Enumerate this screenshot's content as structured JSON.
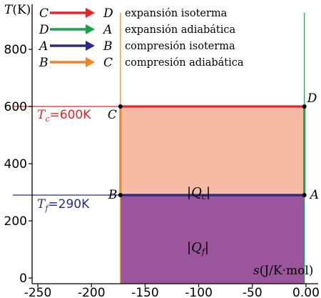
{
  "chart_data": {
    "type": "area",
    "xlim": [
      -262,
      10
    ],
    "ylim": [
      -20,
      960
    ],
    "x_ticks": [
      -250,
      -200,
      -150,
      -100,
      -50,
      0
    ],
    "x_tick_labels": [
      "-250",
      "-200",
      "-150",
      "-100",
      "-50",
      "0.00"
    ],
    "y_ticks": [
      0,
      200,
      400,
      600,
      800
    ],
    "y_tick_labels": [
      "0",
      "200",
      "400",
      "600",
      "800"
    ],
    "ylabel_var": "T",
    "ylabel_unit": "(K)",
    "xlabel_var": "s",
    "xlabel_unit": "(J/K·mol)",
    "points": [
      {
        "label": "A",
        "x": -1.5,
        "y": 290
      },
      {
        "label": "B",
        "x": -173,
        "y": 290
      },
      {
        "label": "C",
        "x": -173,
        "y": 600
      },
      {
        "label": "D",
        "x": -1.5,
        "y": 600
      }
    ],
    "segments": [
      {
        "from": "C",
        "to": "D",
        "name": "expansión isoterma",
        "color": "#e8262a"
      },
      {
        "from": "D",
        "to": "A",
        "name": "expansión adiabática",
        "color": "#1ba14a"
      },
      {
        "from": "A",
        "to": "B",
        "name": "compresión isoterma",
        "color": "#2b2a86"
      },
      {
        "from": "B",
        "to": "C",
        "name": "compresión adiabática",
        "color": "#f08426"
      }
    ],
    "hot_isotherm": {
      "var": "T",
      "sub": "c",
      "value_text": "=600K",
      "value": 600,
      "color": "#e8262a"
    },
    "cold_isotherm": {
      "var": "T",
      "sub": "f",
      "value_text": "=290K",
      "value": 290,
      "color": "#2b2a86"
    },
    "regions": [
      {
        "label_var": "Q",
        "label_sub": "c",
        "y_from": 290,
        "y_to": 600,
        "color": "#f5bba5"
      },
      {
        "label_var": "Q",
        "label_sub": "f",
        "y_from": 0,
        "y_to": 290,
        "color": "#9b559c"
      }
    ],
    "guide_lines": [
      {
        "x": -173,
        "color": "#f08426"
      },
      {
        "x": -1.5,
        "color": "#1ba14a"
      }
    ]
  }
}
